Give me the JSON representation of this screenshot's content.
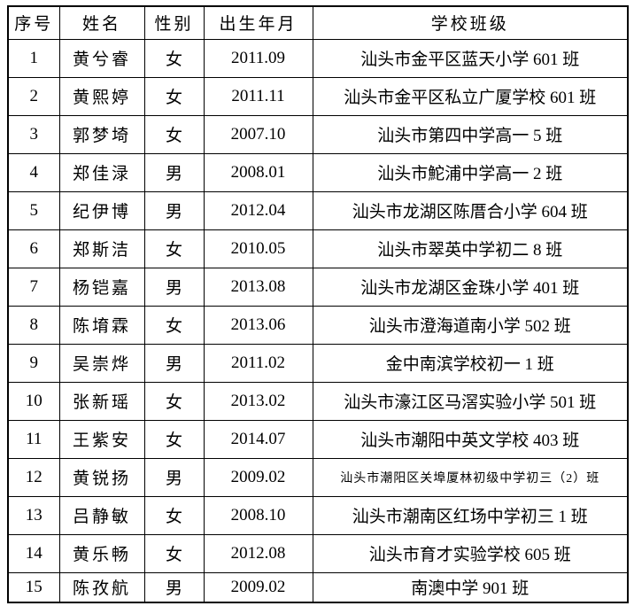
{
  "table": {
    "headers": {
      "no": "序号",
      "name": "姓名",
      "gender": "性别",
      "birth": "出生年月",
      "school": "学校班级"
    },
    "rows": [
      {
        "no": "1",
        "name": "黄兮睿",
        "gender": "女",
        "birth": "2011.09",
        "school": "汕头市金平区蓝天小学 601 班"
      },
      {
        "no": "2",
        "name": "黄熙婷",
        "gender": "女",
        "birth": "2011.11",
        "school": "汕头市金平区私立广厦学校 601 班"
      },
      {
        "no": "3",
        "name": "郭梦埼",
        "gender": "女",
        "birth": "2007.10",
        "school": "汕头市第四中学高一 5 班"
      },
      {
        "no": "4",
        "name": "郑佳渌",
        "gender": "男",
        "birth": "2008.01",
        "school": "汕头市鮀浦中学高一 2 班"
      },
      {
        "no": "5",
        "name": "纪伊博",
        "gender": "男",
        "birth": "2012.04",
        "school": "汕头市龙湖区陈厝合小学 604 班"
      },
      {
        "no": "6",
        "name": "郑斯洁",
        "gender": "女",
        "birth": "2010.05",
        "school": "汕头市翠英中学初二 8 班"
      },
      {
        "no": "7",
        "name": "杨铠嘉",
        "gender": "男",
        "birth": "2013.08",
        "school": "汕头市龙湖区金珠小学 401 班"
      },
      {
        "no": "8",
        "name": "陈堉霖",
        "gender": "女",
        "birth": "2013.06",
        "school": "汕头市澄海道南小学 502 班"
      },
      {
        "no": "9",
        "name": "吴崇烨",
        "gender": "男",
        "birth": "2011.02",
        "school": "金中南滨学校初一 1 班"
      },
      {
        "no": "10",
        "name": "张新瑶",
        "gender": "女",
        "birth": "2013.02",
        "school": "汕头市濠江区马滘实验小学 501 班"
      },
      {
        "no": "11",
        "name": "王紫安",
        "gender": "女",
        "birth": "2014.07",
        "school": "汕头市潮阳中英文学校 403 班"
      },
      {
        "no": "12",
        "name": "黄锐扬",
        "gender": "男",
        "birth": "2009.02",
        "school": "汕头市潮阳区关埠厦林初级中学初三（2）班"
      },
      {
        "no": "13",
        "name": "吕静敏",
        "gender": "女",
        "birth": "2008.10",
        "school": "汕头市潮南区红场中学初三 1 班"
      },
      {
        "no": "14",
        "name": "黄乐畅",
        "gender": "女",
        "birth": "2012.08",
        "school": "汕头市育才实验学校 605 班"
      },
      {
        "no": "15",
        "name": "陈孜航",
        "gender": "男",
        "birth": "2009.02",
        "school": "南澳中学 901 班"
      }
    ]
  }
}
